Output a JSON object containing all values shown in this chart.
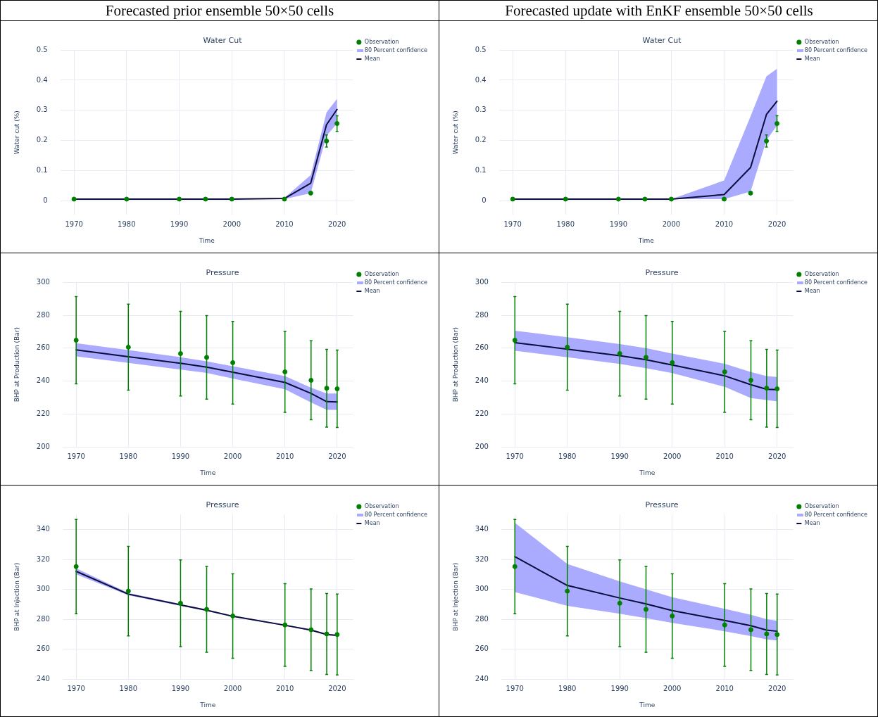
{
  "chart_data": [
    {
      "type": "line",
      "subtitle": "Forecasted prior ensemble 50×50 cells",
      "title": "Water Cut",
      "xlabel": "Time",
      "ylabel": "Water cut (%)",
      "annotations": [
        "80 Percent confidence"
      ],
      "x": [
        1970,
        1980,
        1990,
        1995,
        2000,
        2010,
        2015,
        2018,
        2020
      ],
      "xlim": [
        1967.4,
        2023.1
      ],
      "xticks": [
        1970,
        1980,
        1990,
        2000,
        2010,
        2020
      ],
      "ylim": [
        -0.047,
        0.5
      ],
      "yticks": [
        0,
        0.1,
        0.2,
        0.3,
        0.4,
        0.5
      ],
      "grid": true,
      "legend": "top right",
      "series": [
        {
          "name": "Observation",
          "type": "scatter",
          "color": "#008000",
          "marker": "circle",
          "values": [
            0.005,
            0.005,
            0.005,
            0.005,
            0.005,
            0.005,
            0.025,
            0.198,
            0.256
          ],
          "errors": [
            null,
            null,
            null,
            null,
            null,
            null,
            null,
            0.02,
            0.026
          ]
        },
        {
          "name": "Mean",
          "type": "line",
          "color": "#0d0d3d",
          "marker": "none",
          "line_style": "solid",
          "values": [
            0.005,
            0.005,
            0.005,
            0.005,
            0.005,
            0.007,
            0.058,
            0.252,
            0.303
          ],
          "lower": [
            0.005,
            0.005,
            0.005,
            0.005,
            0.005,
            0.005,
            0.025,
            0.215,
            0.256
          ],
          "upper": [
            0.005,
            0.005,
            0.005,
            0.005,
            0.005,
            0.009,
            0.085,
            0.293,
            0.338
          ]
        }
      ]
    },
    {
      "type": "line",
      "subtitle": "Forecasted update with EnKF ensemble 50×50 cells",
      "title": "Water Cut",
      "xlabel": "Time",
      "ylabel": "Water cut (%)",
      "annotations": [
        "80 Percent confidence"
      ],
      "x": [
        1970,
        1980,
        1990,
        1995,
        2000,
        2010,
        2015,
        2018,
        2020
      ],
      "xlim": [
        1967.4,
        2023.1
      ],
      "xticks": [
        1970,
        1980,
        1990,
        2000,
        2010,
        2020
      ],
      "ylim": [
        -0.047,
        0.5
      ],
      "yticks": [
        0,
        0.1,
        0.2,
        0.3,
        0.4,
        0.5
      ],
      "grid": true,
      "legend": "top right",
      "series": [
        {
          "name": "Observation",
          "type": "scatter",
          "color": "#008000",
          "marker": "circle",
          "values": [
            0.005,
            0.005,
            0.005,
            0.005,
            0.005,
            0.005,
            0.025,
            0.198,
            0.256
          ],
          "errors": [
            null,
            null,
            null,
            null,
            null,
            null,
            null,
            0.02,
            0.026
          ]
        },
        {
          "name": "Mean",
          "type": "line",
          "color": "#0d0d3d",
          "marker": "none",
          "line_style": "solid",
          "values": [
            0.005,
            0.005,
            0.005,
            0.005,
            0.005,
            0.02,
            0.11,
            0.286,
            0.33
          ],
          "lower": [
            0.005,
            0.005,
            0.005,
            0.005,
            0.005,
            0.005,
            0.03,
            0.2,
            0.25
          ],
          "upper": [
            0.005,
            0.005,
            0.005,
            0.005,
            0.005,
            0.067,
            0.28,
            0.413,
            0.438
          ]
        }
      ]
    },
    {
      "type": "line",
      "title": "Pressure",
      "xlabel": "Time",
      "ylabel": "BHP at Production (Bar)",
      "annotations": [
        "80 Percent confidence"
      ],
      "x": [
        1970,
        1980,
        1990,
        1995,
        2000,
        2010,
        2015,
        2018,
        2020
      ],
      "xlim": [
        1967.4,
        2023.1
      ],
      "xticks": [
        1970,
        1980,
        1990,
        2000,
        2010,
        2020
      ],
      "ylim": [
        200,
        300
      ],
      "yticks": [
        200,
        220,
        240,
        260,
        280,
        300
      ],
      "grid": true,
      "legend": "top right",
      "series": [
        {
          "name": "Observation",
          "type": "scatter",
          "color": "#008000",
          "marker": "circle",
          "values": [
            264.8,
            260.6,
            256.7,
            254.4,
            251.2,
            245.6,
            240.5,
            235.7,
            235.3
          ],
          "errors": [
            26.5,
            26.1,
            25.7,
            25.4,
            25.1,
            24.6,
            24,
            23.6,
            23.5
          ]
        },
        {
          "name": "Mean",
          "type": "line",
          "color": "#0d0d3d",
          "marker": "none",
          "line_style": "solid",
          "values": [
            259,
            254.8,
            250.8,
            248.5,
            245.4,
            239.2,
            232.5,
            227.5,
            227.3
          ],
          "lower": [
            255,
            251,
            247,
            245,
            241.5,
            235,
            227,
            222.5,
            222.5
          ],
          "upper": [
            263,
            258.8,
            254.5,
            252,
            249,
            243,
            236,
            232.5,
            232.5
          ]
        }
      ]
    },
    {
      "type": "line",
      "title": "Pressure",
      "xlabel": "Time",
      "ylabel": "BHP at Production (Bar)",
      "annotations": [
        "80 Percent confidence"
      ],
      "x": [
        1970,
        1980,
        1990,
        1995,
        2000,
        2010,
        2015,
        2018,
        2020
      ],
      "xlim": [
        1967.4,
        2023.1
      ],
      "xticks": [
        1970,
        1980,
        1990,
        2000,
        2010,
        2020
      ],
      "ylim": [
        200,
        300
      ],
      "yticks": [
        200,
        220,
        240,
        260,
        280,
        300
      ],
      "grid": true,
      "legend": "top right",
      "series": [
        {
          "name": "Observation",
          "type": "scatter",
          "color": "#008000",
          "marker": "circle",
          "values": [
            264.8,
            260.6,
            256.7,
            254.4,
            251.2,
            245.6,
            240.5,
            235.7,
            235.3
          ],
          "errors": [
            26.5,
            26.1,
            25.7,
            25.4,
            25.1,
            24.6,
            24,
            23.6,
            23.5
          ]
        },
        {
          "name": "Mean",
          "type": "line",
          "color": "#0d0d3d",
          "marker": "none",
          "line_style": "solid",
          "values": [
            263.3,
            259.4,
            255.4,
            253,
            249.8,
            243.2,
            237.8,
            235,
            234.8
          ],
          "lower": [
            258.4,
            254.5,
            250.4,
            247.8,
            244.8,
            236.5,
            229.7,
            228.5,
            227.6
          ],
          "upper": [
            270.6,
            266.6,
            262.5,
            260,
            256.7,
            250.5,
            245.5,
            243,
            242.5
          ]
        }
      ]
    },
    {
      "type": "line",
      "title": "Pressure",
      "xlabel": "Time",
      "ylabel": "BHP at Injection (Bar)",
      "annotations": [
        "80 Percent confidence"
      ],
      "x": [
        1970,
        1980,
        1990,
        1995,
        2000,
        2010,
        2015,
        2018,
        2020
      ],
      "xlim": [
        1967.4,
        2023.1
      ],
      "xticks": [
        1970,
        1980,
        1990,
        2000,
        2010,
        2020
      ],
      "ylim": [
        240,
        350
      ],
      "yticks": [
        240,
        260,
        280,
        300,
        320,
        340
      ],
      "grid": true,
      "legend": "top right",
      "series": [
        {
          "name": "Observation",
          "type": "scatter",
          "color": "#008000",
          "marker": "circle",
          "values": [
            315.2,
            298.8,
            290.7,
            286.6,
            282.2,
            276.2,
            273,
            270.2,
            269.8
          ],
          "errors": [
            31.5,
            29.9,
            29,
            28.7,
            28.2,
            27.6,
            27.3,
            27,
            27
          ]
        },
        {
          "name": "Mean",
          "type": "line",
          "color": "#0d0d3d",
          "marker": "none",
          "line_style": "solid",
          "values": [
            312,
            296.8,
            289.6,
            286,
            282,
            276,
            272.8,
            269.8,
            269.2
          ],
          "lower": [
            310,
            296,
            289,
            285.5,
            281.6,
            275.6,
            272.4,
            269.4,
            268.8
          ],
          "upper": [
            314,
            297.6,
            290.2,
            286.5,
            282.4,
            276.4,
            273.2,
            270.2,
            269.6
          ]
        }
      ]
    },
    {
      "type": "line",
      "title": "Pressure",
      "xlabel": "Time",
      "ylabel": "BHP at Injection (Bar)",
      "annotations": [
        "80 Percent confidence"
      ],
      "x": [
        1970,
        1980,
        1990,
        1995,
        2000,
        2010,
        2015,
        2018,
        2020
      ],
      "xlim": [
        1967.4,
        2023.1
      ],
      "xticks": [
        1970,
        1980,
        1990,
        2000,
        2010,
        2020
      ],
      "ylim": [
        240,
        350
      ],
      "yticks": [
        240,
        260,
        280,
        300,
        320,
        340
      ],
      "grid": true,
      "legend": "top right",
      "series": [
        {
          "name": "Observation",
          "type": "scatter",
          "color": "#008000",
          "marker": "circle",
          "values": [
            315.2,
            298.8,
            290.7,
            286.6,
            282.2,
            276.2,
            273,
            270.2,
            269.8
          ],
          "errors": [
            31.5,
            29.9,
            29,
            28.7,
            28.2,
            27.6,
            27.3,
            27,
            27
          ]
        },
        {
          "name": "Mean",
          "type": "line",
          "color": "#0d0d3d",
          "marker": "none",
          "line_style": "solid",
          "values": [
            321.8,
            302.6,
            294.2,
            290.3,
            285.8,
            279.2,
            275.7,
            272.8,
            272
          ],
          "lower": [
            298.2,
            289,
            283.7,
            280.8,
            277.6,
            272,
            268.8,
            266.5,
            265.8
          ],
          "upper": [
            344.5,
            317,
            305.3,
            300,
            294.7,
            287,
            283,
            280,
            279
          ]
        }
      ]
    }
  ]
}
